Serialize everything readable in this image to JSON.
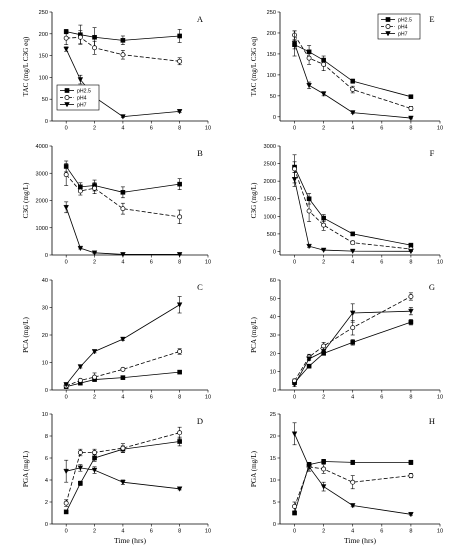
{
  "x_axis_label": "Time (hrs)",
  "chart_data": [
    {
      "panel": "A",
      "type": "line",
      "ylabel": "TAC (mg/L C3G eq)",
      "xlim": [
        -1,
        10
      ],
      "ylim": [
        0,
        250
      ],
      "xticks": [
        0,
        2,
        4,
        6,
        8,
        10
      ],
      "yticks": [
        0,
        50,
        100,
        150,
        200,
        250
      ],
      "legend": "bottom-left",
      "series": [
        {
          "name": "pH2.5",
          "marker": "square",
          "line": "solid",
          "x": [
            0,
            1,
            2,
            4,
            8
          ],
          "y": [
            205,
            198,
            192,
            185,
            195
          ],
          "err": [
            5,
            22,
            22,
            10,
            15
          ]
        },
        {
          "name": "pH4",
          "marker": "circle-open",
          "line": "dashed",
          "x": [
            0,
            1,
            2,
            4,
            8
          ],
          "y": [
            190,
            192,
            168,
            152,
            137
          ],
          "err": [
            15,
            15,
            15,
            10,
            8
          ]
        },
        {
          "name": "pH7",
          "marker": "triangle-down",
          "line": "solid",
          "x": [
            0,
            1,
            2,
            4,
            8
          ],
          "y": [
            165,
            95,
            55,
            10,
            22
          ],
          "err": [
            5,
            10,
            5,
            2,
            2
          ]
        }
      ]
    },
    {
      "panel": "B",
      "type": "line",
      "ylabel": "C3G (mg/L)",
      "xlim": [
        -1,
        10
      ],
      "ylim": [
        0,
        4000
      ],
      "xticks": [
        0,
        2,
        4,
        6,
        8,
        10
      ],
      "yticks": [
        0,
        1000,
        2000,
        3000,
        4000
      ],
      "series": [
        {
          "name": "pH2.5",
          "marker": "square",
          "line": "solid",
          "x": [
            0,
            1,
            2,
            4,
            8
          ],
          "y": [
            3250,
            2500,
            2550,
            2300,
            2600
          ],
          "err": [
            200,
            150,
            200,
            200,
            200
          ]
        },
        {
          "name": "pH4",
          "marker": "circle-open",
          "line": "dashed",
          "x": [
            0,
            1,
            2,
            4,
            8
          ],
          "y": [
            2950,
            2350,
            2450,
            1700,
            1400
          ],
          "err": [
            400,
            150,
            200,
            200,
            250
          ]
        },
        {
          "name": "pH7",
          "marker": "triangle-down",
          "line": "solid",
          "x": [
            0,
            1,
            2,
            4,
            8
          ],
          "y": [
            1750,
            250,
            80,
            20,
            20
          ],
          "err": [
            200,
            30,
            20,
            10,
            10
          ]
        }
      ]
    },
    {
      "panel": "C",
      "type": "line",
      "ylabel": "PCA (mg/L)",
      "xlim": [
        -1,
        10
      ],
      "ylim": [
        0,
        40
      ],
      "xticks": [
        0,
        2,
        4,
        6,
        8,
        10
      ],
      "yticks": [
        0,
        10,
        20,
        30,
        40
      ],
      "series": [
        {
          "name": "pH2.5",
          "marker": "square",
          "line": "solid",
          "x": [
            0,
            1,
            2,
            4,
            8
          ],
          "y": [
            1.2,
            2.5,
            3.8,
            4.5,
            6.5
          ],
          "err": [
            0.3,
            0.5,
            0.5,
            0.5,
            0.5
          ]
        },
        {
          "name": "pH4",
          "marker": "circle-open",
          "line": "dashed",
          "x": [
            0,
            1,
            2,
            4,
            8
          ],
          "y": [
            1.5,
            3.5,
            4.7,
            7.5,
            14
          ],
          "err": [
            0.3,
            0.5,
            1.5,
            0.5,
            1
          ]
        },
        {
          "name": "pH7",
          "marker": "triangle-down",
          "line": "solid",
          "x": [
            0,
            1,
            2,
            4,
            8
          ],
          "y": [
            2,
            8.5,
            14,
            18.5,
            31
          ],
          "err": [
            0.3,
            0.5,
            0.5,
            0.5,
            3
          ]
        }
      ]
    },
    {
      "panel": "D",
      "type": "line",
      "ylabel": "PGA (mg/L)",
      "xlim": [
        -1,
        10
      ],
      "ylim": [
        0,
        10
      ],
      "xticks": [
        0,
        2,
        4,
        6,
        8,
        10
      ],
      "yticks": [
        0,
        2,
        4,
        6,
        8,
        10
      ],
      "series": [
        {
          "name": "pH2.5",
          "marker": "square",
          "line": "solid",
          "x": [
            0,
            1,
            2,
            4,
            8
          ],
          "y": [
            1.1,
            3.7,
            6.0,
            6.8,
            7.5
          ],
          "err": [
            0.1,
            0.2,
            0.3,
            0.3,
            0.4
          ]
        },
        {
          "name": "pH4",
          "marker": "circle-open",
          "line": "dashed",
          "x": [
            0,
            1,
            2,
            4,
            8
          ],
          "y": [
            1.9,
            6.5,
            6.5,
            6.9,
            8.3
          ],
          "err": [
            0.3,
            0.3,
            0.3,
            0.4,
            0.5
          ]
        },
        {
          "name": "pH7",
          "marker": "triangle-down",
          "line": "solid",
          "x": [
            0,
            1,
            2,
            4,
            8
          ],
          "y": [
            4.8,
            5.1,
            4.9,
            3.8,
            3.2
          ],
          "err": [
            1.0,
            0.3,
            0.3,
            0.2,
            0.1
          ]
        }
      ]
    },
    {
      "panel": "E",
      "type": "line",
      "ylabel": "TAC (mg/L C3G eq)",
      "xlim": [
        -1,
        10
      ],
      "ylim": [
        -10,
        250
      ],
      "xticks": [
        0,
        2,
        4,
        6,
        8,
        10
      ],
      "yticks": [
        0,
        50,
        100,
        150,
        200,
        250
      ],
      "legend": "top-right",
      "series": [
        {
          "name": "pH2.5",
          "marker": "square",
          "line": "solid",
          "x": [
            0,
            1,
            2,
            4,
            8
          ],
          "y": [
            172,
            155,
            135,
            85,
            48
          ],
          "err": [
            10,
            15,
            10,
            5,
            3
          ]
        },
        {
          "name": "pH4",
          "marker": "circle-open",
          "line": "dashed",
          "x": [
            0,
            1,
            2,
            4,
            8
          ],
          "y": [
            195,
            140,
            125,
            65,
            20
          ],
          "err": [
            10,
            15,
            15,
            8,
            5
          ]
        },
        {
          "name": "pH7",
          "marker": "triangle-down",
          "line": "solid",
          "x": [
            0,
            1,
            2,
            4,
            8
          ],
          "y": [
            175,
            75,
            55,
            10,
            -3
          ],
          "err": [
            30,
            8,
            5,
            2,
            2
          ]
        }
      ]
    },
    {
      "panel": "F",
      "type": "line",
      "ylabel": "C3G (mg/L)",
      "xlim": [
        -1,
        10
      ],
      "ylim": [
        -100,
        3000
      ],
      "xticks": [
        0,
        2,
        4,
        6,
        8,
        10
      ],
      "yticks": [
        0,
        500,
        1000,
        1500,
        2000,
        2500,
        3000
      ],
      "series": [
        {
          "name": "pH2.5",
          "marker": "square",
          "line": "solid",
          "x": [
            0,
            1,
            2,
            4,
            8
          ],
          "y": [
            2400,
            1500,
            950,
            500,
            180
          ],
          "err": [
            150,
            150,
            100,
            50,
            30
          ]
        },
        {
          "name": "pH4",
          "marker": "circle-open",
          "line": "dashed",
          "x": [
            0,
            1,
            2,
            4,
            8
          ],
          "y": [
            2350,
            1150,
            750,
            250,
            70
          ],
          "err": [
            400,
            300,
            150,
            50,
            20
          ]
        },
        {
          "name": "pH7",
          "marker": "triangle-down",
          "line": "solid",
          "x": [
            0,
            1,
            2,
            4,
            8
          ],
          "y": [
            2050,
            150,
            40,
            10,
            5
          ],
          "err": [
            200,
            30,
            10,
            5,
            5
          ]
        }
      ]
    },
    {
      "panel": "G",
      "type": "line",
      "ylabel": "PCA (mg/L)",
      "xlim": [
        -1,
        10
      ],
      "ylim": [
        0,
        60
      ],
      "xticks": [
        0,
        2,
        4,
        6,
        8,
        10
      ],
      "yticks": [
        0,
        10,
        20,
        30,
        40,
        50,
        60
      ],
      "series": [
        {
          "name": "pH2.5",
          "marker": "square",
          "line": "solid",
          "x": [
            0,
            1,
            2,
            4,
            8
          ],
          "y": [
            4,
            13,
            20,
            26,
            37
          ],
          "err": [
            1,
            1,
            1,
            1.5,
            1.5
          ]
        },
        {
          "name": "pH4",
          "marker": "circle-open",
          "line": "dashed",
          "x": [
            0,
            1,
            2,
            4,
            8
          ],
          "y": [
            5,
            18,
            24,
            34,
            51
          ],
          "err": [
            1,
            1.5,
            2,
            4,
            2
          ]
        },
        {
          "name": "pH7",
          "marker": "triangle-down",
          "line": "solid",
          "x": [
            0,
            1,
            2,
            4,
            8
          ],
          "y": [
            3,
            17,
            21,
            42,
            43
          ],
          "err": [
            1,
            1,
            2,
            5,
            2
          ]
        }
      ]
    },
    {
      "panel": "H",
      "type": "line",
      "ylabel": "PGA (mg/L)",
      "xlim": [
        -1,
        10
      ],
      "ylim": [
        0,
        25
      ],
      "xticks": [
        0,
        2,
        4,
        6,
        8,
        10
      ],
      "yticks": [
        0,
        5,
        10,
        15,
        20,
        25
      ],
      "series": [
        {
          "name": "pH2.5",
          "marker": "square",
          "line": "solid",
          "x": [
            0,
            1,
            2,
            4,
            8
          ],
          "y": [
            2.5,
            13.5,
            14.2,
            14,
            14
          ],
          "err": [
            0.3,
            0.5,
            0.5,
            0.5,
            0.5
          ]
        },
        {
          "name": "pH4",
          "marker": "circle-open",
          "line": "dashed",
          "x": [
            0,
            1,
            2,
            4,
            8
          ],
          "y": [
            4,
            13,
            12.5,
            9.5,
            11
          ],
          "err": [
            1,
            1,
            1,
            1.5,
            0.5
          ]
        },
        {
          "name": "pH7",
          "marker": "triangle-down",
          "line": "solid",
          "x": [
            0,
            1,
            2,
            4,
            8
          ],
          "y": [
            20.5,
            13,
            8.5,
            4.2,
            2.2
          ],
          "err": [
            2.5,
            1,
            1,
            0.3,
            0.2
          ]
        }
      ]
    }
  ]
}
